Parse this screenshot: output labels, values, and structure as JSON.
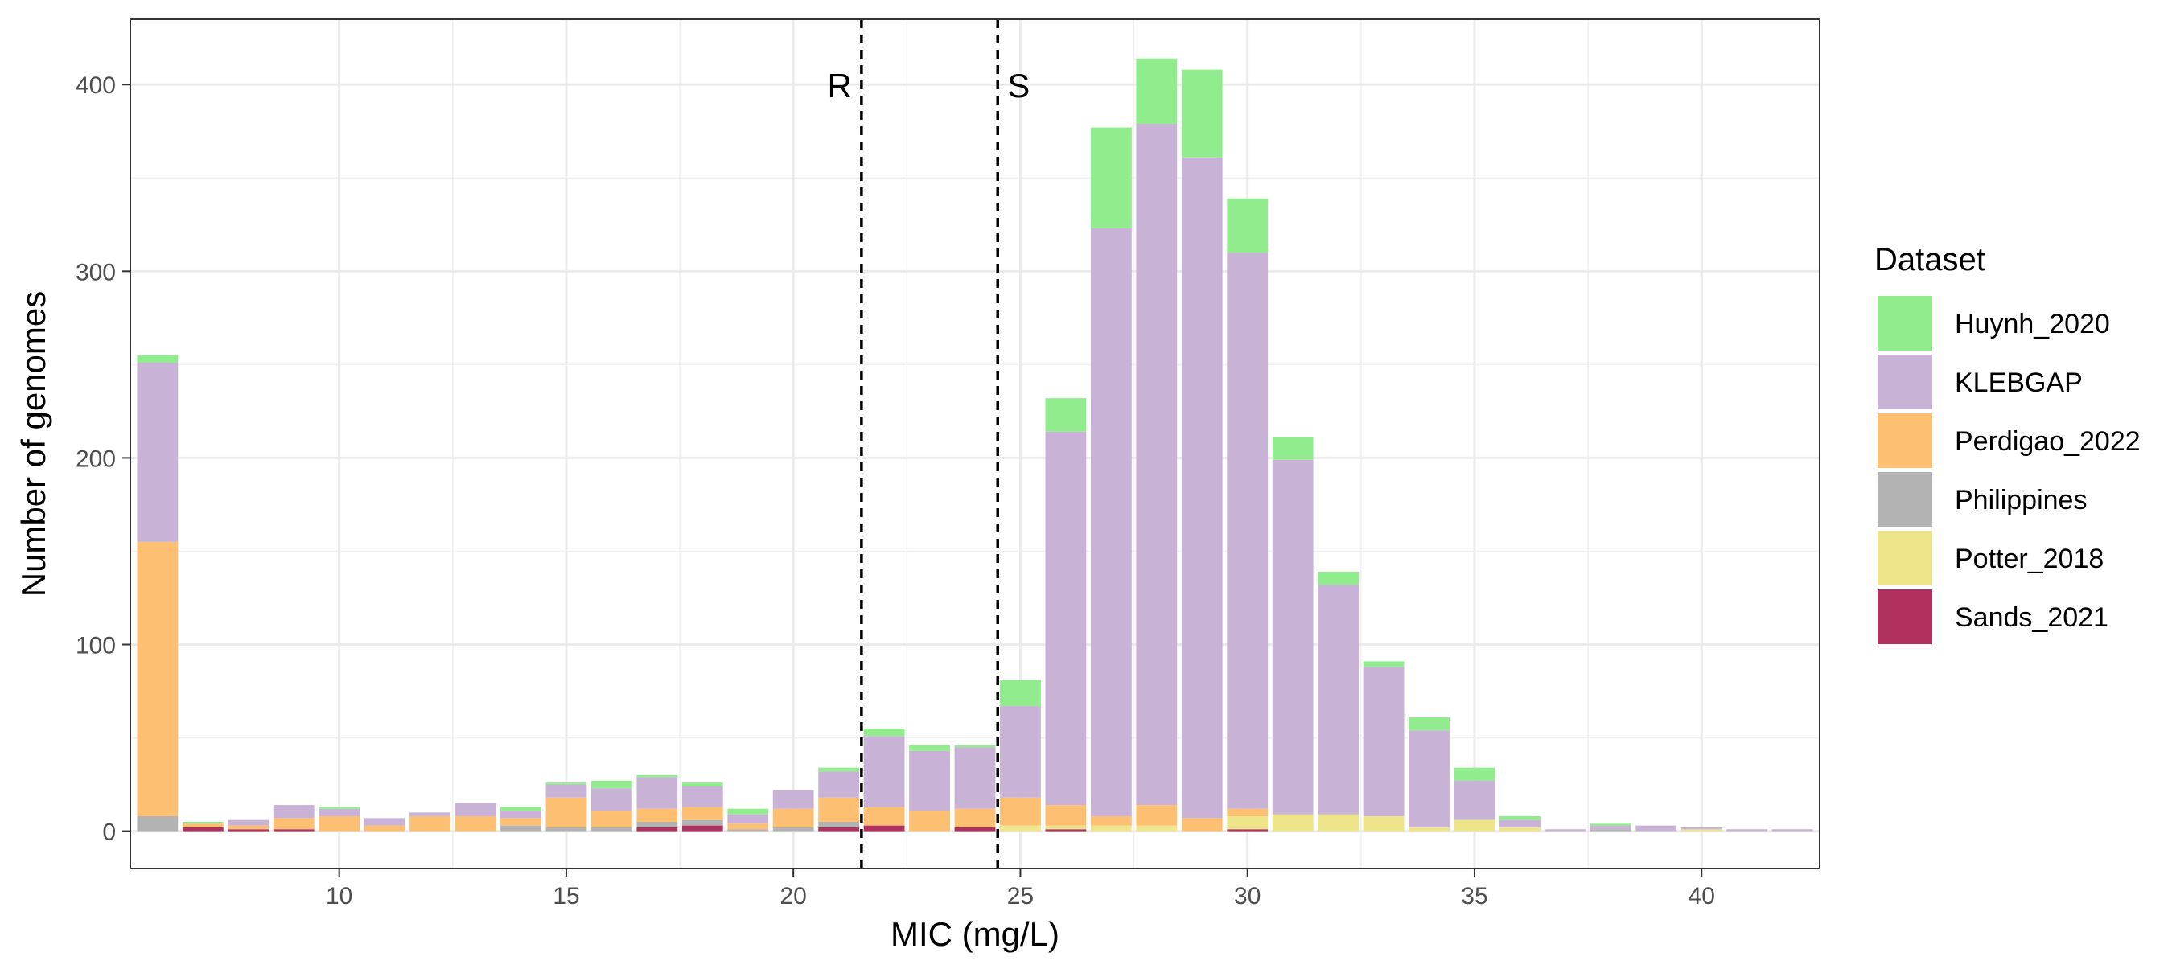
{
  "chart_data": {
    "type": "bar",
    "stacked": true,
    "title": "",
    "xlabel": "MIC (mg/L)",
    "ylabel": "Number of genomes",
    "xlim": [
      5.4,
      42.6
    ],
    "ylim": [
      -20,
      435
    ],
    "xticks": [
      10,
      15,
      20,
      25,
      30,
      35,
      40
    ],
    "yticks": [
      0,
      100,
      200,
      300,
      400
    ],
    "grid": true,
    "legend": {
      "title": "Dataset",
      "position": "right"
    },
    "x": [
      6,
      7,
      8,
      9,
      10,
      11,
      12,
      13,
      14,
      15,
      16,
      17,
      18,
      19,
      20,
      21,
      22,
      23,
      24,
      25,
      26,
      27,
      28,
      29,
      30,
      31,
      32,
      33,
      34,
      35,
      36,
      37,
      38,
      39,
      40,
      41,
      42
    ],
    "series": [
      {
        "name": "Sands_2021",
        "color": "#B03060",
        "values": [
          0,
          2,
          1,
          1,
          0,
          0,
          0,
          0,
          0,
          0,
          0,
          2,
          3,
          0,
          0,
          2,
          3,
          0,
          2,
          0,
          1,
          0,
          0,
          0,
          1,
          0,
          0,
          0,
          0,
          0,
          0,
          0,
          0,
          0,
          0,
          0,
          0
        ]
      },
      {
        "name": "Potter_2018",
        "color": "#EEE58A",
        "values": [
          0,
          0,
          0,
          0,
          0,
          0,
          0,
          0,
          0,
          0,
          0,
          0,
          0,
          0,
          0,
          0,
          0,
          0,
          0,
          3,
          2,
          3,
          3,
          0,
          7,
          9,
          9,
          8,
          2,
          6,
          2,
          0,
          0,
          0,
          1,
          0,
          0
        ]
      },
      {
        "name": "Philippines",
        "color": "#B3B3B3",
        "values": [
          8,
          0,
          0,
          0,
          0,
          0,
          0,
          0,
          3,
          2,
          2,
          3,
          3,
          1,
          2,
          3,
          0,
          0,
          0,
          0,
          0,
          0,
          0,
          0,
          0,
          0,
          0,
          0,
          0,
          0,
          0,
          0,
          1,
          0,
          0,
          0,
          0
        ]
      },
      {
        "name": "Perdigao_2022",
        "color": "#FDC072",
        "values": [
          147,
          2,
          2,
          6,
          8,
          3,
          8,
          8,
          4,
          16,
          9,
          7,
          7,
          3,
          10,
          13,
          10,
          11,
          10,
          15,
          11,
          5,
          11,
          7,
          4,
          0,
          0,
          0,
          0,
          0,
          0,
          0,
          0,
          0,
          0,
          0,
          0
        ]
      },
      {
        "name": "KLEBGAP",
        "color": "#C8B2D6",
        "values": [
          96,
          0,
          3,
          7,
          4,
          4,
          2,
          7,
          4,
          7,
          12,
          17,
          11,
          5,
          10,
          14,
          38,
          32,
          33,
          49,
          200,
          315,
          365,
          354,
          298,
          190,
          123,
          80,
          52,
          21,
          4,
          1,
          2,
          3,
          1,
          1,
          1
        ]
      },
      {
        "name": "Huynh_2020",
        "color": "#91EC8E",
        "values": [
          4,
          1,
          0,
          0,
          1,
          0,
          0,
          0,
          2,
          1,
          4,
          1,
          2,
          3,
          0,
          2,
          4,
          3,
          1,
          14,
          18,
          54,
          35,
          47,
          29,
          12,
          7,
          3,
          7,
          7,
          2,
          0,
          1,
          0,
          0,
          0,
          0
        ]
      }
    ],
    "reference_lines": [
      {
        "x": 21.5,
        "label": "R",
        "label_side": "left"
      },
      {
        "x": 24.5,
        "label": "S",
        "label_side": "right"
      }
    ]
  }
}
